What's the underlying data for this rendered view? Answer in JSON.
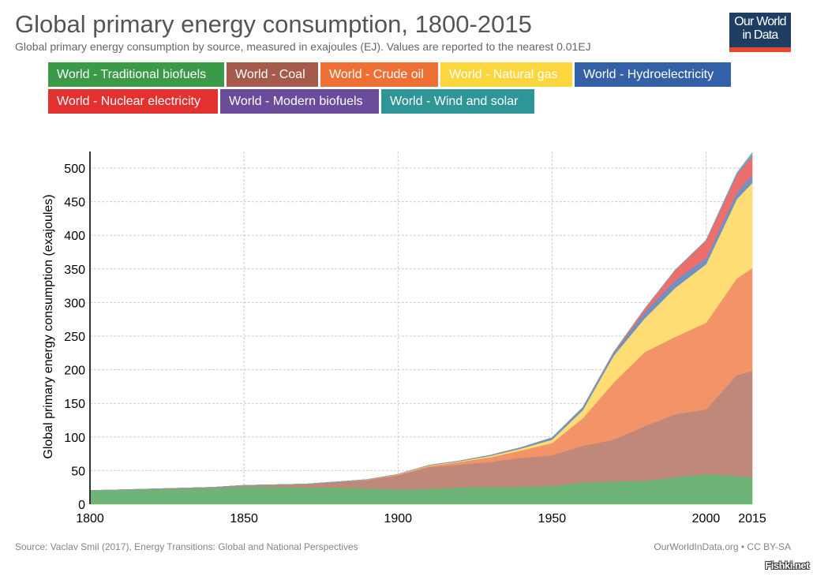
{
  "header": {
    "title": "Global primary energy consumption, 1800-2015",
    "subtitle": "Global primary energy consumption by source, measured in exajoules (EJ). Values are reported to the nearest 0.01EJ",
    "logo_line1": "Our World",
    "logo_line2": "in Data"
  },
  "legend": [
    {
      "label": "World - Traditional biofuels",
      "color": "#3a9a47"
    },
    {
      "label": "World - Coal",
      "color": "#a65a4b"
    },
    {
      "label": "World - Crude oil",
      "color": "#ee7034"
    },
    {
      "label": "World - Natural gas",
      "color": "#fbd73d"
    },
    {
      "label": "World - Hydroelectricity",
      "color": "#3460a8"
    },
    {
      "label": "World - Nuclear electricity",
      "color": "#e3312f"
    },
    {
      "label": "World - Modern biofuels",
      "color": "#6a4c9b"
    },
    {
      "label": "World - Wind and solar",
      "color": "#2e9697"
    }
  ],
  "footer": {
    "source": "Source: Vaclav Smil (2017), Energy Transitions: Global and National Perspectives",
    "credit": "OurWorldInData.org • CC BY-SA",
    "watermark": "Fishki.net"
  },
  "chart_data": {
    "type": "area",
    "stacked": true,
    "title": "Global primary energy consumption, 1800-2015",
    "xlabel": "",
    "ylabel": "Global primary energy consumption (exajoules)",
    "xlim": [
      1800,
      2015
    ],
    "ylim": [
      0,
      525
    ],
    "x_ticks": [
      1800,
      1850,
      1900,
      1950,
      2000,
      2015
    ],
    "y_ticks": [
      0,
      50,
      100,
      150,
      200,
      250,
      300,
      350,
      400,
      450,
      500
    ],
    "grid": true,
    "legend_position": "top",
    "x": [
      1800,
      1810,
      1820,
      1830,
      1840,
      1850,
      1860,
      1870,
      1880,
      1890,
      1900,
      1910,
      1920,
      1930,
      1940,
      1950,
      1960,
      1970,
      1980,
      1990,
      2000,
      2010,
      2015
    ],
    "series": [
      {
        "name": "World - Traditional biofuels",
        "color": "#6db476",
        "values": [
          20,
          21,
          22,
          23,
          24,
          26,
          26,
          25,
          25,
          24,
          22,
          23,
          25,
          26,
          26,
          27,
          32,
          34,
          35,
          40,
          45,
          42,
          40
        ]
      },
      {
        "name": "World - Coal",
        "color": "#c0877b",
        "values": [
          0.4,
          0.5,
          0.6,
          0.9,
          1.2,
          2,
          3,
          5,
          8,
          12,
          21,
          32,
          34,
          37,
          43,
          46,
          55,
          62,
          81,
          94,
          96,
          150,
          158
        ]
      },
      {
        "name": "World - Crude oil",
        "color": "#f29468",
        "values": [
          0,
          0,
          0,
          0,
          0,
          0,
          0,
          0.1,
          0.2,
          0.5,
          1,
          2,
          4,
          7,
          11,
          18,
          41,
          85,
          110,
          115,
          129,
          144,
          153
        ]
      },
      {
        "name": "World - Natural gas",
        "color": "#fddd74",
        "values": [
          0,
          0,
          0,
          0,
          0,
          0,
          0,
          0,
          0,
          0.2,
          0.5,
          0.8,
          1,
          2,
          3,
          5,
          12,
          40,
          50,
          73,
          87,
          118,
          127
        ]
      },
      {
        "name": "World - Hydroelectricity",
        "color": "#7191c5",
        "values": [
          0,
          0,
          0,
          0,
          0,
          0,
          0,
          0,
          0,
          0,
          0.1,
          0.3,
          0.5,
          1,
          1.5,
          3,
          4,
          4,
          9,
          11,
          9,
          10,
          12
        ]
      },
      {
        "name": "World - Nuclear electricity",
        "color": "#ec6e6d",
        "values": [
          0,
          0,
          0,
          0,
          0,
          0,
          0,
          0,
          0,
          0,
          0,
          0,
          0,
          0,
          0,
          0,
          0.1,
          1,
          5,
          15,
          26,
          26,
          27
        ]
      },
      {
        "name": "World - Modern biofuels",
        "color": "#9581b9",
        "values": [
          0,
          0,
          0,
          0,
          0,
          0,
          0,
          0,
          0,
          0,
          0,
          0,
          0,
          0,
          0,
          0,
          0,
          0,
          0.1,
          0.3,
          0.5,
          1.5,
          2
        ]
      },
      {
        "name": "World - Wind and solar",
        "color": "#6db5b6",
        "values": [
          0,
          0,
          0,
          0,
          0,
          0,
          0,
          0,
          0,
          0,
          0,
          0,
          0,
          0,
          0,
          0,
          0,
          0,
          0,
          0,
          0.1,
          1.5,
          4
        ]
      }
    ]
  }
}
